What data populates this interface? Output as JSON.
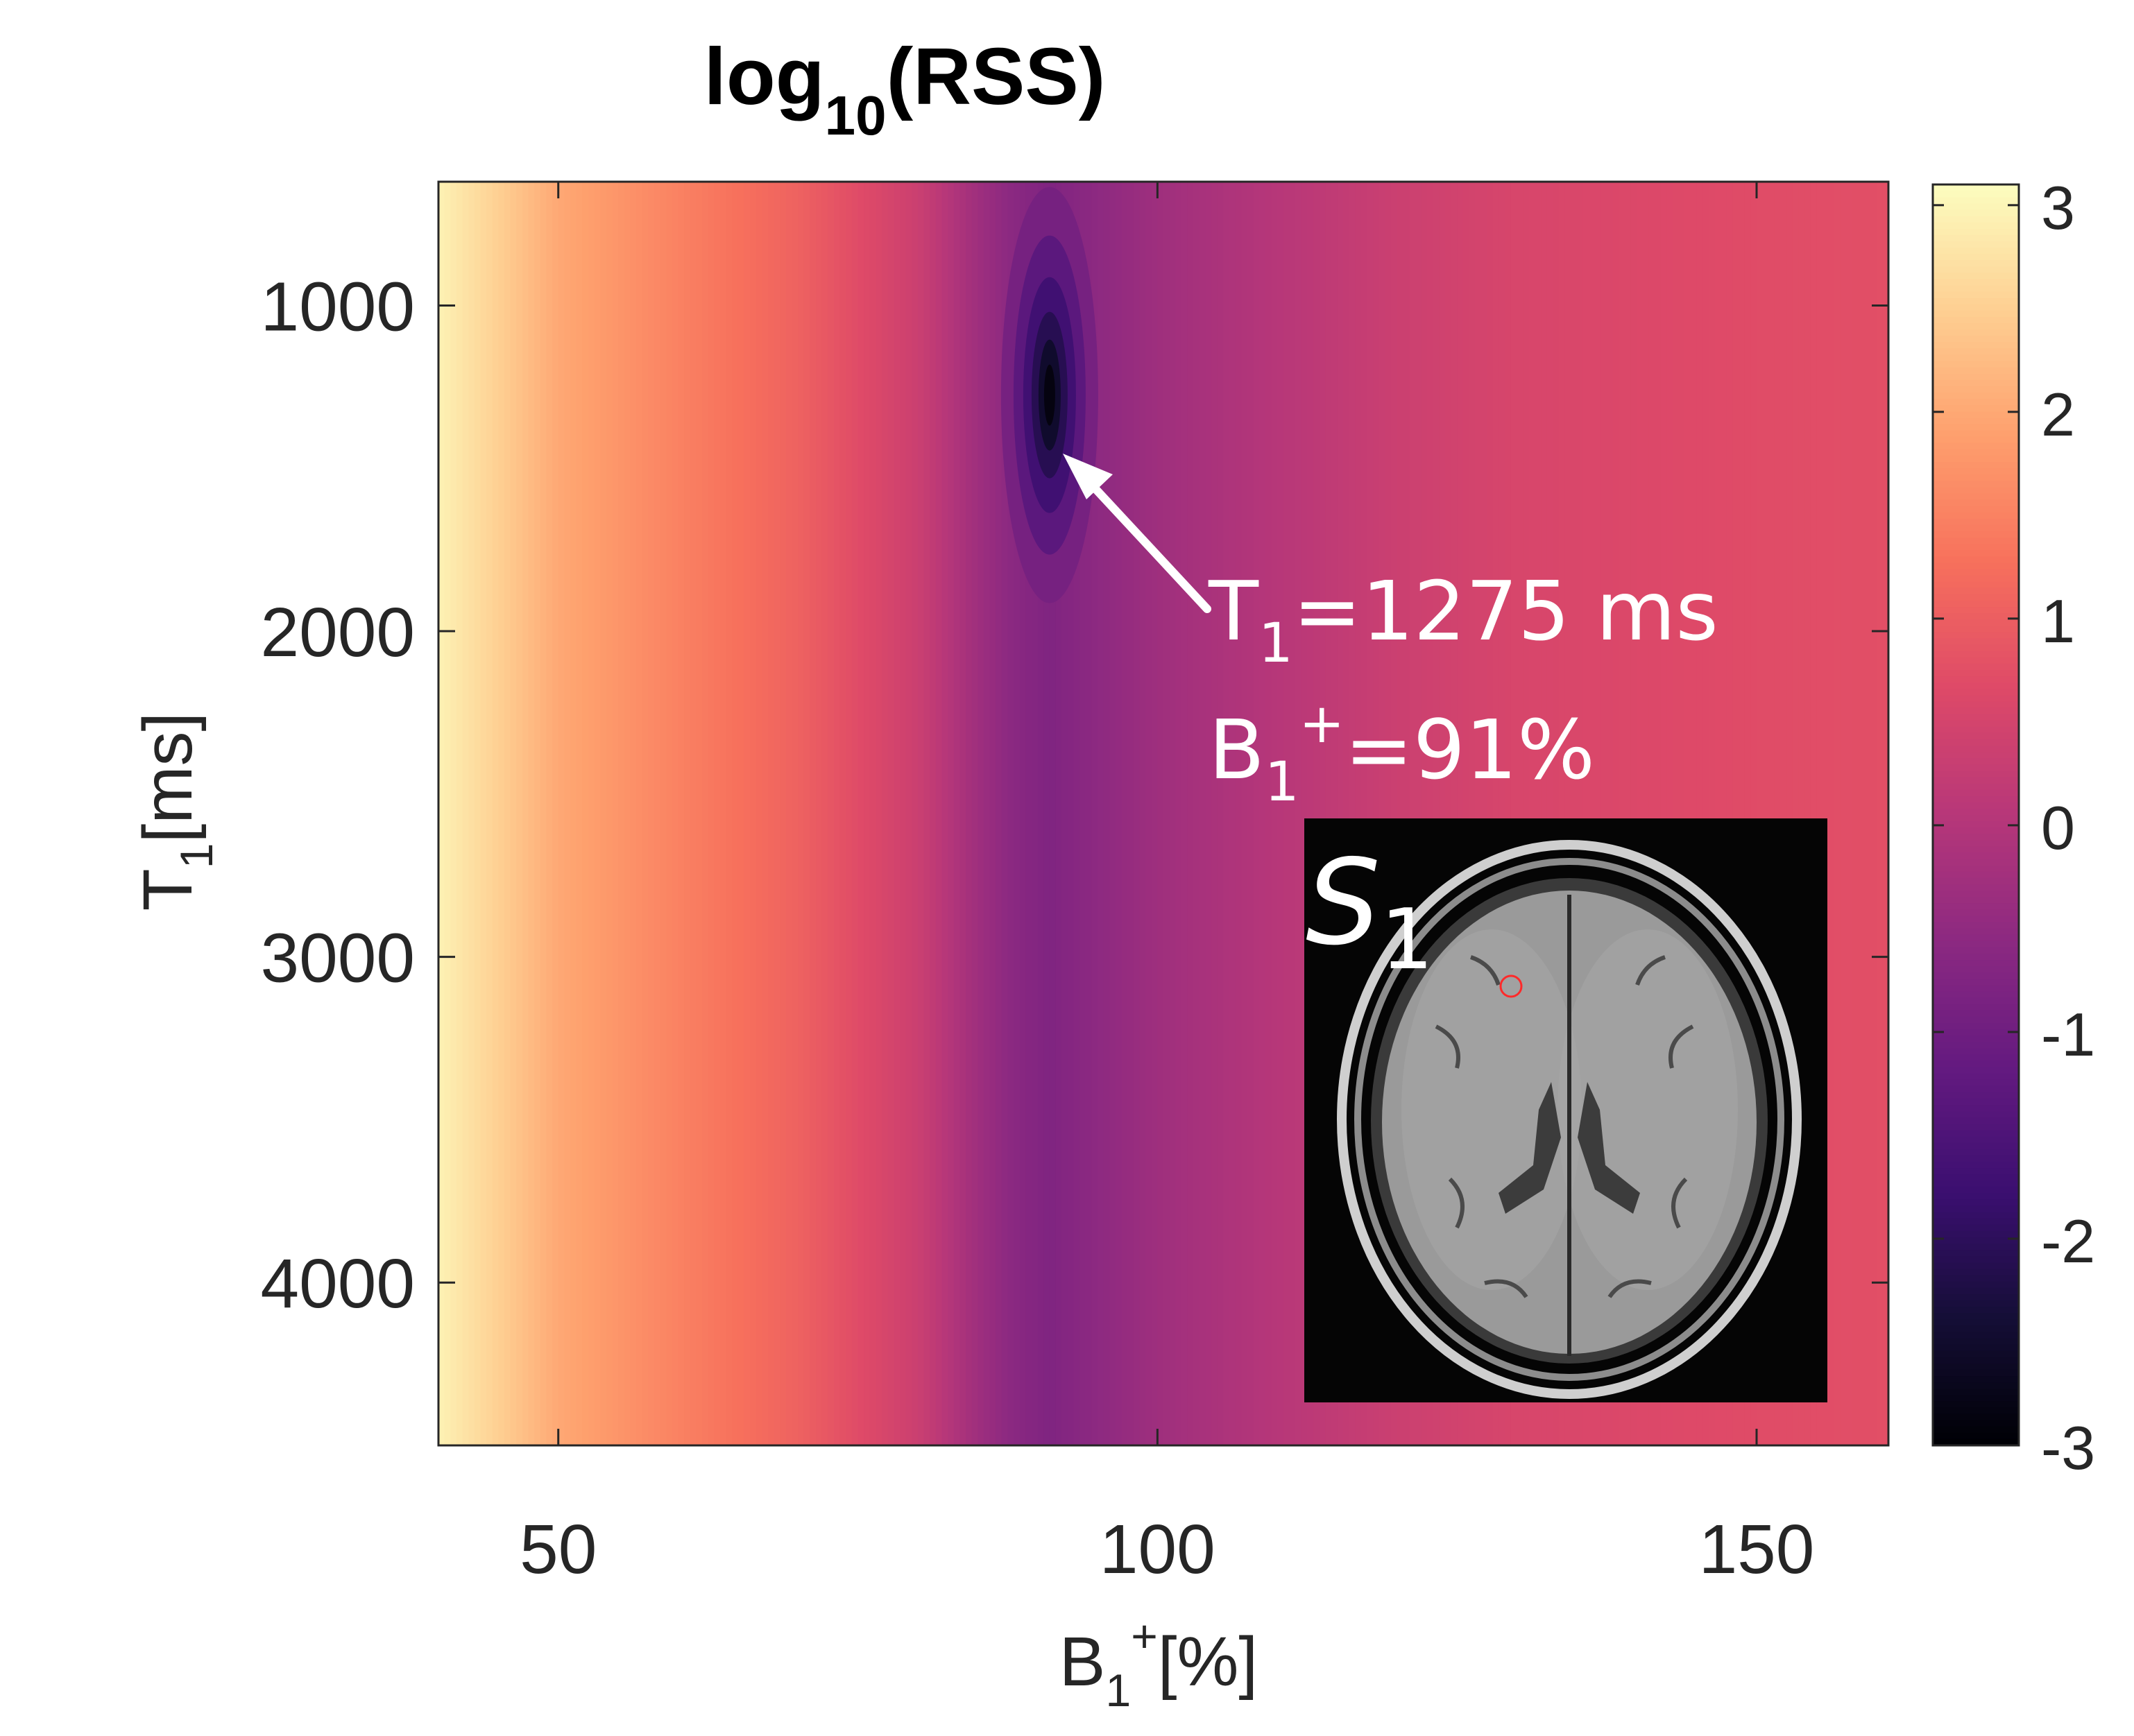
{
  "chart_data": {
    "type": "heatmap",
    "title": {
      "main": "log",
      "sub": "10",
      "tail": "(RSS)"
    },
    "xlabel": {
      "main": "B",
      "sub": "1",
      "sup": "+",
      "tail": "[%]"
    },
    "ylabel": {
      "main": "T",
      "sub": "1",
      "tail": "[ms]"
    },
    "xlim": [
      40,
      161
    ],
    "ylim": [
      620,
      4500
    ],
    "y_reversed": true,
    "x_ticks": [
      50,
      100,
      150
    ],
    "x_tick_labels": [
      "50",
      "100",
      "150"
    ],
    "y_ticks": [
      1000,
      2000,
      3000,
      4000
    ],
    "y_tick_labels": [
      "1000",
      "2000",
      "3000",
      "4000"
    ],
    "colormap": "magma",
    "clim": [
      -3,
      3.1
    ],
    "colorbar_ticks": [
      3,
      2,
      1,
      0,
      -1,
      -2,
      -3
    ],
    "colorbar_tick_labels": [
      "3",
      "2",
      "1",
      "0",
      "-1",
      "-2",
      "-3"
    ],
    "minimum": {
      "x": 91,
      "y": 1275,
      "value": -3
    },
    "annotation": {
      "line1": {
        "pre": "T",
        "sub": "1",
        "post": "=1275 ms"
      },
      "line2": {
        "pre": "B",
        "sub": "1",
        "sup": "+",
        "post": "=91%"
      }
    },
    "inset": {
      "label": "S",
      "label_sub": "1",
      "description": "axial brain MR slice with red ROI circle"
    }
  },
  "colors": {
    "arrow": "#ffffff",
    "annotation_text": "#ffffff",
    "roi_circle": "#ff2a2a",
    "axis": "#262626"
  }
}
